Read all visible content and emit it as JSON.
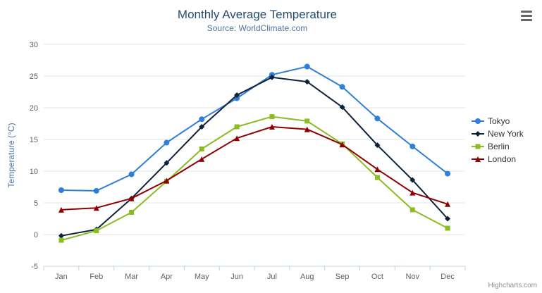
{
  "credits": "Highcharts.com",
  "chart_data": {
    "type": "line",
    "title": "Monthly Average Temperature",
    "subtitle": "Source: WorldClimate.com",
    "xlabel": "",
    "ylabel": "Temperature (°C)",
    "ylim": [
      -5,
      30
    ],
    "yticks": [
      -5,
      0,
      5,
      10,
      15,
      20,
      25,
      30
    ],
    "grid": true,
    "legend_position": "right",
    "categories": [
      "Jan",
      "Feb",
      "Mar",
      "Apr",
      "May",
      "Jun",
      "Jul",
      "Aug",
      "Sep",
      "Oct",
      "Nov",
      "Dec"
    ],
    "series": [
      {
        "name": "Tokyo",
        "color": "#2f7ed8",
        "marker": "circle",
        "values": [
          7.0,
          6.9,
          9.5,
          14.5,
          18.2,
          21.5,
          25.2,
          26.5,
          23.3,
          18.3,
          13.9,
          9.6
        ]
      },
      {
        "name": "New York",
        "color": "#0d233a",
        "marker": "diamond",
        "values": [
          -0.2,
          0.8,
          5.7,
          11.3,
          17.0,
          22.0,
          24.8,
          24.1,
          20.1,
          14.1,
          8.6,
          2.5
        ]
      },
      {
        "name": "Berlin",
        "color": "#8bbc21",
        "marker": "square",
        "values": [
          -0.9,
          0.6,
          3.5,
          8.4,
          13.5,
          17.0,
          18.6,
          17.9,
          14.3,
          9.0,
          3.9,
          1.0
        ]
      },
      {
        "name": "London",
        "color": "#910000",
        "marker": "triangle",
        "values": [
          3.9,
          4.2,
          5.7,
          8.5,
          11.9,
          15.2,
          17.0,
          16.6,
          14.2,
          10.3,
          6.6,
          4.8
        ]
      }
    ]
  }
}
